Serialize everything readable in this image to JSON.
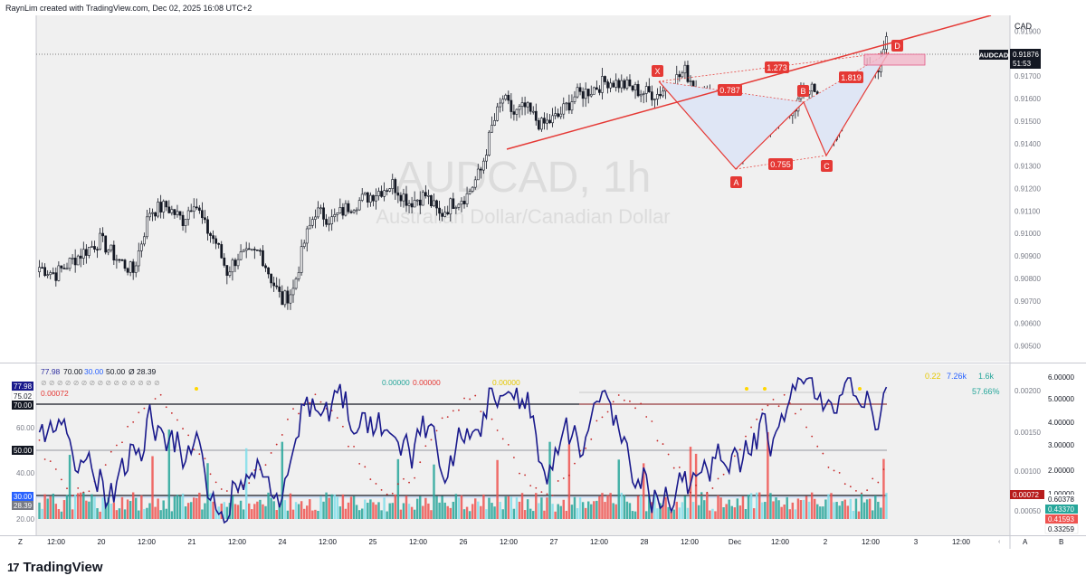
{
  "header": {
    "created_by": "RaynLim created with TradingView.com, Dec 02, 2025 16:08 UTC+2"
  },
  "brand": {
    "logo_glyph": "17",
    "name": "TradingView"
  },
  "price_pane": {
    "currency": "CAD",
    "watermark_symbol": "AUDCAD, 1h",
    "watermark_description": "Australian Dollar/Canadian Dollar",
    "symbol_label": "AUDCAD",
    "last_price": "0.91876",
    "countdown": "51:53",
    "y_ticks": [
      "0.91900",
      "0.91800",
      "0.91700",
      "0.91600",
      "0.91500",
      "0.91400",
      "0.91300",
      "0.91200",
      "0.91100",
      "0.91000",
      "0.90900",
      "0.90800",
      "0.90700",
      "0.90600",
      "0.90500"
    ],
    "pattern_points": [
      "X",
      "A",
      "B",
      "C",
      "D"
    ],
    "pattern_ratios": [
      "1.273",
      "0.787",
      "0.755",
      "1.819"
    ],
    "colors": {
      "up": "#26a69a",
      "down": "#ef5350",
      "candle": "#131722",
      "pattern": "#e53935",
      "pattern_fill": "#dfe6f5"
    }
  },
  "indicator_pane": {
    "legend_row1": [
      "77.98",
      "70.00",
      "30.00",
      "50.00",
      "Ø",
      "28.39"
    ],
    "legend_row2_green": "0.00000",
    "legend_row2_red": "0.00000",
    "legend_row2_yellow": "0.00000",
    "value_red": "0.00072",
    "stats": [
      "0.22",
      "7.26k",
      "1.6k"
    ],
    "percent": "57.66%",
    "left_labels": [
      "77.98",
      "75.02",
      "70.00",
      "50.00",
      "30.00",
      "28.39"
    ],
    "left_ticks": [
      "60.00",
      "40.00",
      "20.00"
    ],
    "right_ticks_mid": [
      "0.00200",
      "0.00150",
      "0.00100",
      "0.00050"
    ],
    "right_ticks_far": [
      "6.00000",
      "5.00000",
      "4.00000",
      "3.00000",
      "2.00000",
      "1.00000"
    ],
    "right_values": [
      "0.00072",
      "0.60378",
      "0.43370",
      "0.41593",
      "0.33259"
    ]
  },
  "time_axis": {
    "corner_left": "Z",
    "corner_mid": "A",
    "corner_right": "B",
    "labels": [
      "12:00",
      "20",
      "12:00",
      "21",
      "12:00",
      "24",
      "12:00",
      "25",
      "12:00",
      "26",
      "12:00",
      "27",
      "12:00",
      "28",
      "12:00",
      "Dec",
      "12:00",
      "2",
      "12:00",
      "3",
      "12:00"
    ]
  },
  "chart_data": {
    "type": "candlestick",
    "title": "AUDCAD, 1h",
    "subtitle": "Australian Dollar/Canadian Dollar",
    "ylabel": "CAD",
    "ylim": [
      0.9043,
      0.9197
    ],
    "last": 0.91876,
    "anchors": [
      [
        0,
        0.9085
      ],
      [
        6,
        0.9082
      ],
      [
        14,
        0.909
      ],
      [
        22,
        0.9097
      ],
      [
        28,
        0.9089
      ],
      [
        34,
        0.9083
      ],
      [
        40,
        0.911
      ],
      [
        46,
        0.9112
      ],
      [
        52,
        0.9106
      ],
      [
        56,
        0.9115
      ],
      [
        60,
        0.9103
      ],
      [
        64,
        0.9096
      ],
      [
        68,
        0.9083
      ],
      [
        72,
        0.909
      ],
      [
        76,
        0.909
      ],
      [
        80,
        0.9092
      ],
      [
        84,
        0.908
      ],
      [
        88,
        0.907
      ],
      [
        92,
        0.9075
      ],
      [
        96,
        0.9096
      ],
      [
        100,
        0.911
      ],
      [
        106,
        0.9106
      ],
      [
        112,
        0.9112
      ],
      [
        120,
        0.9117
      ],
      [
        128,
        0.9122
      ],
      [
        134,
        0.9114
      ],
      [
        140,
        0.9117
      ],
      [
        145,
        0.9108
      ],
      [
        150,
        0.9114
      ],
      [
        155,
        0.9117
      ],
      [
        160,
        0.9128
      ],
      [
        164,
        0.9147
      ],
      [
        168,
        0.916
      ],
      [
        172,
        0.9153
      ],
      [
        176,
        0.9156
      ],
      [
        182,
        0.9148
      ],
      [
        188,
        0.9152
      ],
      [
        194,
        0.9161
      ],
      [
        200,
        0.9164
      ],
      [
        206,
        0.9168
      ],
      [
        212,
        0.9166
      ],
      [
        218,
        0.9163
      ],
      [
        224,
        0.9162
      ],
      [
        230,
        0.9168
      ],
      [
        234,
        0.9172
      ],
      [
        238,
        0.9165
      ],
      [
        242,
        0.916
      ],
      [
        246,
        0.9152
      ],
      [
        250,
        0.914
      ],
      [
        253,
        0.9133
      ],
      [
        256,
        0.914
      ],
      [
        260,
        0.9145
      ],
      [
        264,
        0.9148
      ],
      [
        268,
        0.9151
      ],
      [
        272,
        0.9154
      ],
      [
        276,
        0.916
      ],
      [
        280,
        0.9166
      ],
      [
        284,
        0.9152
      ],
      [
        288,
        0.9141
      ],
      [
        292,
        0.916
      ],
      [
        296,
        0.9166
      ],
      [
        300,
        0.9172
      ],
      [
        304,
        0.9175
      ],
      [
        306,
        0.9183
      ],
      [
        307,
        0.91876
      ]
    ],
    "pattern": {
      "X": [
        0,
        0.9174
      ],
      "A": [
        0,
        0.9133
      ],
      "B": [
        0,
        0.9166
      ],
      "C": [
        0,
        0.914
      ],
      "D": [
        0,
        0.9194
      ]
    },
    "ratios": {
      "XA_XD": "1.273",
      "XB": "0.787",
      "AC": "0.755",
      "BD": "1.819"
    }
  }
}
